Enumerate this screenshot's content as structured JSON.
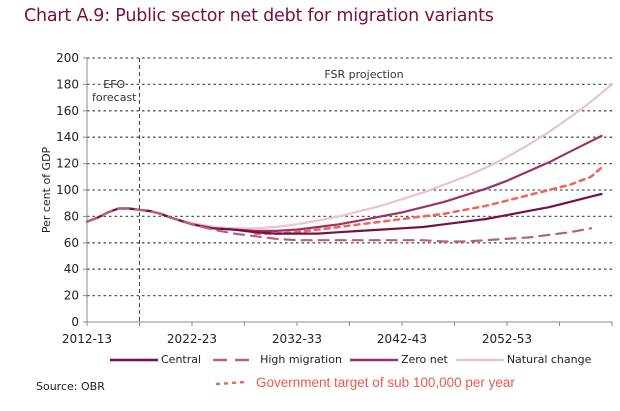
{
  "page": {
    "title": "Chart A.9: Public sector net debt for migration variants",
    "source": "Source: OBR"
  },
  "colors": {
    "central": "#7a0f46",
    "high_migration": "#b5607f",
    "zero_net": "#9c3263",
    "natural_change": "#e8c3d0",
    "gov_target": "#ec6a5c",
    "title": "#7a0f3e"
  },
  "legend": {
    "central": "Central",
    "high_migration": "High migration",
    "zero_net": "Zero net",
    "natural_change": "Natural change",
    "gov_target": "Government target of sub 100,000 per year"
  },
  "chart_data": {
    "type": "line",
    "title": "Chart A.9: Public sector net debt for migration variants",
    "xlabel": "",
    "ylabel": "Per cent of GDP",
    "ylim": [
      0,
      200
    ],
    "yticks": [
      0,
      20,
      40,
      60,
      80,
      100,
      120,
      140,
      160,
      180,
      200
    ],
    "xlim": [
      2012,
      2062
    ],
    "xtick_labels": [
      {
        "x": 2012,
        "label": "2012-13"
      },
      {
        "x": 2022,
        "label": "2022-23"
      },
      {
        "x": 2032,
        "label": "2032-33"
      },
      {
        "x": 2042,
        "label": "2042-43"
      },
      {
        "x": 2052,
        "label": "2052-53"
      }
    ],
    "minor_xticks": [
      2017,
      2027,
      2037,
      2047,
      2057,
      2062
    ],
    "grid": true,
    "divider": {
      "x": 2017,
      "left_label": [
        "EFO",
        "forecast"
      ],
      "right_label": "FSR projection"
    },
    "legend_position": "bottom",
    "series": [
      {
        "name": "Natural change",
        "key": "natural_change",
        "style": "solid",
        "x": [
          2012,
          2013,
          2014,
          2015,
          2016,
          2017,
          2018,
          2019,
          2020,
          2022,
          2024,
          2026,
          2028,
          2030,
          2032,
          2034,
          2036,
          2038,
          2040,
          2042,
          2044,
          2046,
          2048,
          2050,
          2052,
          2054,
          2056,
          2058,
          2060,
          2062
        ],
        "values": [
          76,
          79,
          83,
          86,
          86,
          85,
          84,
          82,
          79,
          75,
          72,
          71,
          71,
          72,
          74,
          77,
          80,
          84,
          88,
          93,
          98,
          104,
          110,
          117,
          125,
          134,
          144,
          155,
          167,
          180
        ]
      },
      {
        "name": "Zero net",
        "key": "zero_net",
        "style": "solid",
        "x": [
          2012,
          2013,
          2014,
          2015,
          2016,
          2017,
          2018,
          2019,
          2020,
          2022,
          2024,
          2026,
          2028,
          2030,
          2032,
          2034,
          2036,
          2038,
          2040,
          2042,
          2044,
          2046,
          2048,
          2050,
          2052,
          2054,
          2056,
          2058,
          2060,
          2061
        ],
        "values": [
          76,
          79,
          83,
          86,
          86,
          85,
          84,
          82,
          79,
          74,
          71,
          70,
          69,
          69,
          70,
          72,
          74,
          77,
          80,
          83,
          87,
          91,
          96,
          101,
          107,
          114,
          121,
          129,
          137,
          141
        ]
      },
      {
        "name": "Government target of sub 100,000 per year",
        "key": "gov_target",
        "style": "dotted-dash",
        "x": [
          2028,
          2030,
          2032,
          2034,
          2036,
          2038,
          2040,
          2042,
          2044,
          2046,
          2048,
          2050,
          2052,
          2054,
          2056,
          2058,
          2060,
          2061
        ],
        "values": [
          67,
          67,
          68,
          70,
          72,
          74,
          76,
          78,
          80,
          82,
          85,
          88,
          92,
          96,
          100,
          104,
          110,
          117
        ]
      },
      {
        "name": "Central",
        "key": "central",
        "style": "solid",
        "x": [
          2012,
          2013,
          2014,
          2015,
          2016,
          2017,
          2018,
          2019,
          2020,
          2022,
          2024,
          2026,
          2028,
          2030,
          2032,
          2034,
          2036,
          2038,
          2040,
          2042,
          2044,
          2046,
          2048,
          2050,
          2052,
          2054,
          2056,
          2058,
          2060,
          2061
        ],
        "values": [
          76,
          79,
          83,
          86,
          86,
          85,
          84,
          82,
          79,
          74,
          71,
          70,
          68,
          67,
          67,
          67,
          68,
          69,
          70,
          71,
          72,
          74,
          76,
          78,
          81,
          84,
          87,
          91,
          95,
          97
        ]
      },
      {
        "name": "High migration",
        "key": "high_migration",
        "style": "dashed",
        "x": [
          2012,
          2013,
          2014,
          2015,
          2016,
          2017,
          2018,
          2019,
          2020,
          2022,
          2024,
          2026,
          2028,
          2030,
          2032,
          2034,
          2036,
          2038,
          2040,
          2042,
          2044,
          2046,
          2048,
          2050,
          2052,
          2054,
          2056,
          2058,
          2060
        ],
        "values": [
          76,
          79,
          83,
          86,
          86,
          85,
          84,
          82,
          79,
          74,
          70,
          67,
          65,
          63,
          62,
          62,
          62,
          62,
          62,
          62,
          62,
          61,
          61,
          62,
          63,
          64,
          66,
          68,
          71
        ]
      }
    ]
  }
}
